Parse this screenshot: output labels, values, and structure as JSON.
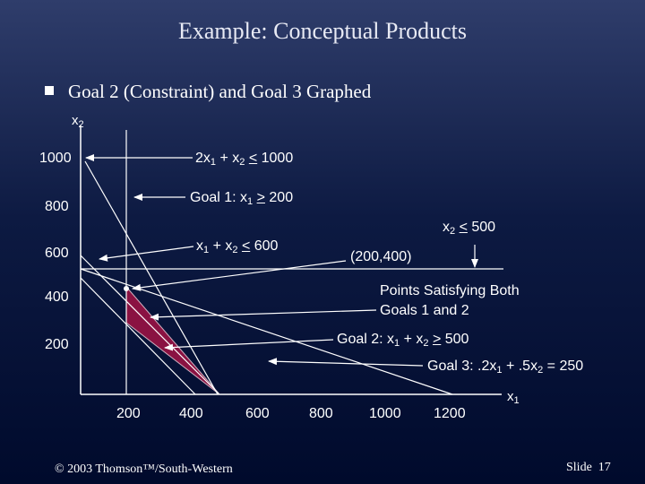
{
  "title": "Example:  Conceptual Products",
  "bullet_text": "Goal 2 (Constraint) and Goal 3 Graphed",
  "axes": {
    "y_var": "x",
    "y_sub": "2",
    "x_var": "x",
    "x_sub": "1",
    "y_ticks": [
      "1000",
      "800",
      "600",
      "400",
      "200"
    ],
    "x_ticks": [
      "200",
      "400",
      "600",
      "800",
      "1000",
      "1200"
    ]
  },
  "annotations": {
    "c1": {
      "a": "2x",
      "a_sub": "1",
      "b": " + x",
      "b_sub": "2",
      "op": "<",
      "rhs": " 1000"
    },
    "goal1": {
      "pre": "Goal 1:  x",
      "sub": "1",
      "op": ">",
      "rhs": " 200"
    },
    "c2": {
      "a": "x",
      "a_sub": "2",
      "op": "<",
      "rhs": " 500"
    },
    "c3": {
      "a": "x",
      "a_sub": "1",
      "b": " + x",
      "b_sub": "2",
      "op": "<",
      "rhs": " 600"
    },
    "point": "(200,400)",
    "both_line1": "Points Satisfying Both",
    "both_line2": "Goals 1 and 2",
    "goal2": {
      "pre": "Goal 2:  x",
      "a_sub": "1",
      "b": " + x",
      "b_sub": "2",
      "op": ">",
      "rhs": " 500"
    },
    "goal3": {
      "pre": "Goal 3: .2x",
      "a_sub": "1",
      "b": " + .5x",
      "b_sub": "2",
      "rhs": "  =  250"
    }
  },
  "footer": {
    "copyright": "© 2003 Thomson™/South-Western",
    "slide_label": "Slide",
    "slide_number": "17"
  },
  "colors": {
    "region_fill": "#8a1242",
    "line": "#ffffff",
    "background": "#0d1a42"
  }
}
